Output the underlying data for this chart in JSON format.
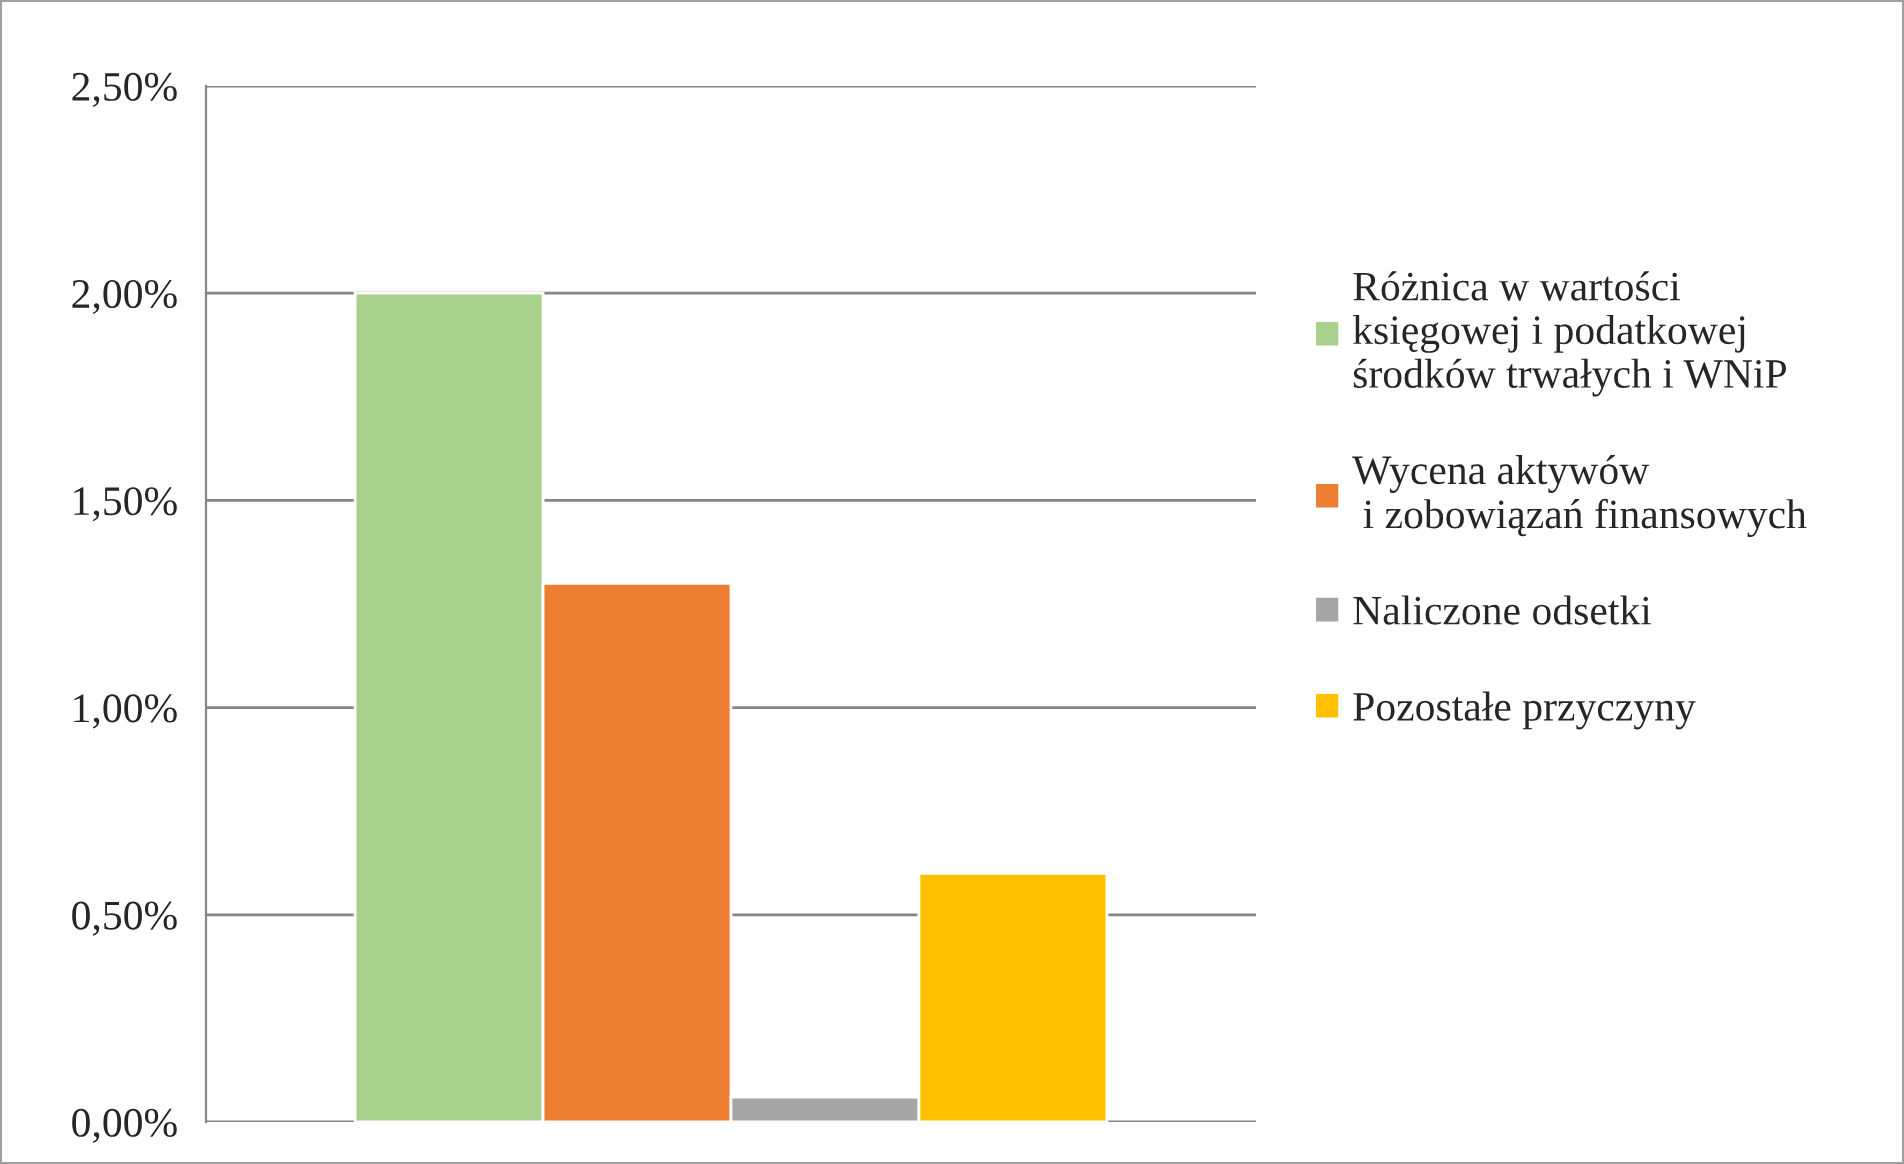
{
  "chart_data": {
    "type": "bar",
    "categories": [
      null
    ],
    "series": [
      {
        "name": "Różnica w wartości\nksięgowej i podatkowej\nśrodków trwałych i WNiP",
        "color": "#a9d18e",
        "values": [
          2.0
        ]
      },
      {
        "name": "Wycena aktywów\n i zobowiązań finansowych",
        "color": "#ed7d31",
        "values": [
          1.3
        ]
      },
      {
        "name": "Naliczone odsetki",
        "color": "#a5a5a5",
        "values": [
          0.06
        ]
      },
      {
        "name": "Pozostałe przyczyny",
        "color": "#ffc000",
        "values": [
          0.6
        ]
      }
    ],
    "ylim": [
      0,
      2.5
    ],
    "yticks": [
      {
        "value": 0,
        "label": "0,00%"
      },
      {
        "value": 0.5,
        "label": "0,50%"
      },
      {
        "value": 1.0,
        "label": "1,00%"
      },
      {
        "value": 1.5,
        "label": "1,50%"
      },
      {
        "value": 2.0,
        "label": "2,00%"
      },
      {
        "value": 2.5,
        "label": "2,50%"
      }
    ],
    "grid": "y",
    "legend": "right",
    "tick_labels": "y"
  }
}
